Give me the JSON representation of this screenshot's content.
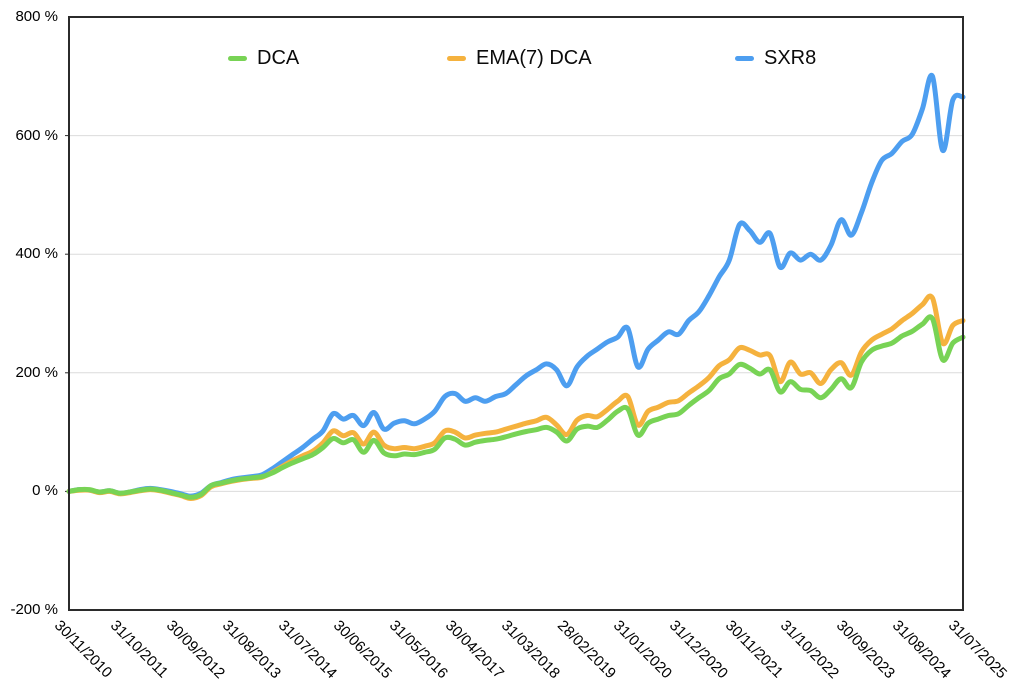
{
  "chart_data": {
    "type": "line",
    "title": "",
    "unit": "%",
    "grid": true,
    "axis_color": "#2b2b2b",
    "grid_color": "#dcdcdc",
    "text_color": "#000000",
    "y_axis": {
      "min": -200,
      "max": 800,
      "tick_step": 200,
      "tick_values": [
        800,
        600,
        400,
        200,
        0,
        -200
      ],
      "tick_labels": [
        "800 %",
        "600 %",
        "400 %",
        "200 %",
        "0 %",
        "-200 %"
      ],
      "gridlines_at": [
        600,
        400,
        200,
        0
      ]
    },
    "x_axis": {
      "tick_labels": [
        "30/11/2010",
        "31/10/2011",
        "30/09/2012",
        "31/08/2013",
        "31/07/2014",
        "30/06/2015",
        "31/05/2016",
        "30/04/2017",
        "31/03/2018",
        "28/02/2019",
        "31/01/2020",
        "31/12/2020",
        "30/11/2021",
        "31/10/2022",
        "30/09/2023",
        "31/08/2024",
        "31/07/2025"
      ],
      "months_between_ticks": 11,
      "total_months": 176,
      "months_step_per_value": 2
    },
    "legend": [
      {
        "name": "DCA",
        "color": "#78D355"
      },
      {
        "name": "EMA(7) DCA",
        "color": "#F5B23E"
      },
      {
        "name": "SXR8",
        "color": "#4D9EF0"
      }
    ],
    "series": [
      {
        "name": "SXR8",
        "color": "#4D9EF0",
        "values": [
          0,
          3,
          2,
          -1,
          1,
          -3,
          -1,
          3,
          5,
          3,
          0,
          -4,
          -8,
          -3,
          10,
          15,
          20,
          23,
          25,
          28,
          38,
          50,
          62,
          74,
          88,
          102,
          131,
          122,
          128,
          111,
          133,
          105,
          115,
          119,
          114,
          122,
          135,
          160,
          165,
          152,
          158,
          152,
          160,
          165,
          180,
          195,
          205,
          215,
          205,
          178,
          210,
          228,
          240,
          252,
          260,
          275,
          210,
          240,
          255,
          269,
          265,
          288,
          303,
          330,
          362,
          390,
          450,
          440,
          420,
          435,
          378,
          402,
          390,
          400,
          390,
          415,
          458,
          432,
          470,
          520,
          558,
          570,
          590,
          602,
          645,
          700,
          575,
          660,
          665
        ]
      },
      {
        "name": "EMA(7) DCA",
        "color": "#F5B23E",
        "values": [
          0,
          2,
          2,
          -2,
          0,
          -4,
          -2,
          1,
          3,
          1,
          -3,
          -7,
          -12,
          -7,
          8,
          13,
          17,
          20,
          22,
          24,
          32,
          42,
          52,
          60,
          68,
          82,
          102,
          94,
          99,
          80,
          100,
          78,
          72,
          74,
          72,
          76,
          82,
          102,
          100,
          90,
          95,
          98,
          100,
          105,
          110,
          115,
          119,
          125,
          112,
          96,
          120,
          128,
          126,
          138,
          152,
          160,
          112,
          135,
          142,
          150,
          153,
          166,
          178,
          192,
          212,
          222,
          242,
          238,
          230,
          229,
          185,
          218,
          198,
          200,
          182,
          205,
          217,
          196,
          235,
          255,
          265,
          274,
          288,
          300,
          315,
          326,
          250,
          280,
          288
        ]
      },
      {
        "name": "DCA",
        "color": "#78D355",
        "values": [
          0,
          3,
          3,
          -1,
          1,
          -3,
          -1,
          2,
          4,
          2,
          -2,
          -6,
          -10,
          -5,
          10,
          14,
          18,
          21,
          23,
          25,
          31,
          40,
          48,
          55,
          62,
          74,
          89,
          82,
          87,
          66,
          86,
          65,
          60,
          63,
          62,
          66,
          71,
          90,
          88,
          78,
          83,
          86,
          88,
          92,
          97,
          101,
          104,
          108,
          100,
          85,
          105,
          110,
          108,
          120,
          135,
          139,
          95,
          115,
          122,
          128,
          131,
          145,
          158,
          170,
          190,
          198,
          214,
          208,
          198,
          205,
          168,
          185,
          172,
          170,
          158,
          172,
          190,
          175,
          218,
          238,
          245,
          250,
          262,
          270,
          282,
          291,
          222,
          250,
          260
        ]
      }
    ]
  }
}
